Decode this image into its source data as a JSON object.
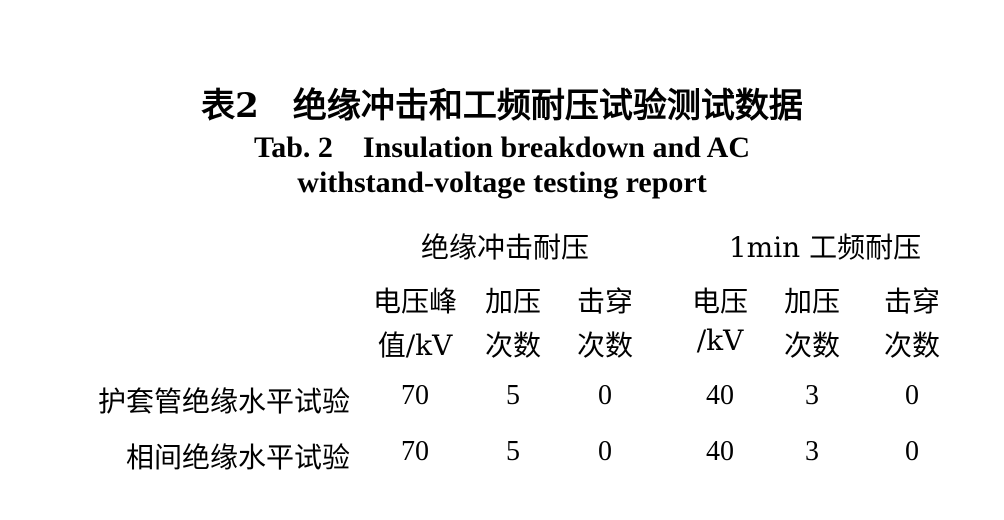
{
  "title_cn": "表2　绝缘冲击和工频耐压试验测试数据",
  "title_en_1": "Tab. 2　Insulation breakdown and AC",
  "title_en_2": "withstand-voltage testing report",
  "group_headers": [
    "绝缘冲击耐压",
    "1min 工频耐压"
  ],
  "columns": [
    [
      "电压峰",
      "值/kV"
    ],
    [
      "加压",
      "次数"
    ],
    [
      "击穿",
      "次数"
    ],
    [
      "电压",
      "/kV"
    ],
    [
      "加压",
      "次数"
    ],
    [
      "击穿",
      "次数"
    ]
  ],
  "rows": [
    {
      "label": "护套管绝缘水平试验",
      "values": [
        "70",
        "5",
        "0",
        "40",
        "3",
        "0"
      ]
    },
    {
      "label": "相间绝缘水平试验",
      "values": [
        "70",
        "5",
        "0",
        "40",
        "3",
        "0"
      ]
    }
  ]
}
